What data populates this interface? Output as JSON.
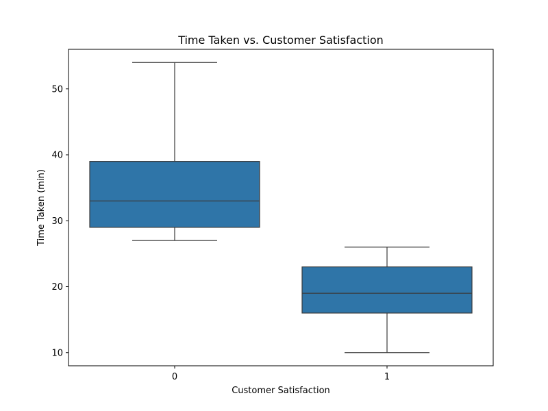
{
  "chart_data": {
    "type": "box",
    "title": "Time Taken vs. Customer Satisfaction",
    "xlabel": "Customer Satisfaction",
    "ylabel": "Time Taken (min)",
    "categories": [
      "0",
      "1"
    ],
    "ylim": [
      8,
      56
    ],
    "yticks": [
      10,
      20,
      30,
      40,
      50
    ],
    "grid": false,
    "legend": "none",
    "box_color": "#2f75a8",
    "edge_color": "#3a3a3a",
    "series": [
      {
        "category": "0",
        "min": 27,
        "q1": 29,
        "median": 33,
        "q3": 39,
        "max": 54
      },
      {
        "category": "1",
        "min": 10,
        "q1": 16,
        "median": 19,
        "q3": 23,
        "max": 26
      }
    ]
  }
}
